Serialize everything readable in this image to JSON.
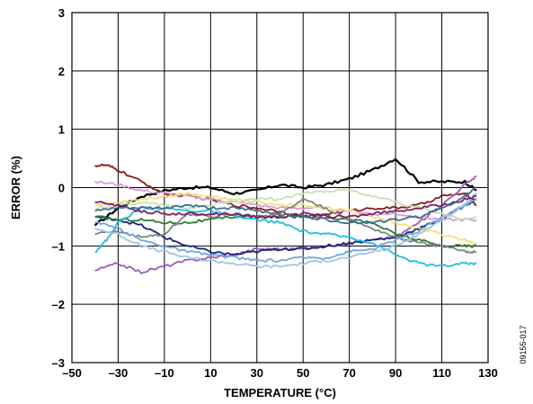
{
  "chart_data": {
    "type": "line",
    "xlabel": "TEMPERATURE (°C)",
    "ylabel": "ERROR (%)",
    "xlim": [
      -50,
      130
    ],
    "ylim": [
      -3,
      3
    ],
    "x_ticks": [
      -50,
      -30,
      -10,
      10,
      30,
      50,
      70,
      90,
      110,
      130
    ],
    "x_tick_labels": [
      "–50",
      "–30",
      "–10",
      "10",
      "30",
      "50",
      "70",
      "90",
      "110",
      "130"
    ],
    "y_ticks": [
      -3,
      -2,
      -1,
      0,
      1,
      2,
      3
    ],
    "y_tick_labels": [
      "–3",
      "–2",
      "–1",
      "0",
      "1",
      "2",
      "3"
    ],
    "grid": true,
    "legend": "none",
    "figure_id": "09155-017",
    "series": [
      {
        "color": "#000000",
        "x": [
          -40,
          -30,
          -20,
          -10,
          0,
          10,
          20,
          30,
          40,
          50,
          60,
          70,
          80,
          90,
          100,
          110,
          120,
          125
        ],
        "values": [
          -0.65,
          -0.35,
          -0.15,
          -0.05,
          0.0,
          0.0,
          -0.1,
          -0.05,
          0.05,
          0.0,
          0.05,
          0.15,
          0.3,
          0.5,
          0.1,
          0.1,
          0.1,
          -0.05
        ]
      },
      {
        "color": "#8B1A1A",
        "x": [
          -40,
          -35,
          -30,
          -20,
          -10,
          0,
          10,
          20,
          30,
          40,
          50,
          60,
          70,
          80,
          90,
          100,
          110,
          120,
          125
        ],
        "values": [
          0.38,
          0.38,
          0.3,
          0.1,
          -0.1,
          -0.15,
          -0.2,
          -0.3,
          -0.35,
          -0.4,
          -0.5,
          -0.45,
          -0.4,
          -0.35,
          -0.35,
          -0.3,
          -0.15,
          -0.1,
          -0.3
        ]
      },
      {
        "color": "#9B59B6",
        "x": [
          -40,
          -30,
          -20,
          -10,
          0,
          10,
          20,
          30,
          40,
          50,
          60,
          70,
          80,
          90,
          100,
          110,
          120,
          125
        ],
        "values": [
          -1.42,
          -1.3,
          -1.45,
          -1.35,
          -1.25,
          -1.2,
          -1.15,
          -1.05,
          -1.05,
          -1.05,
          -1.0,
          -0.95,
          -0.9,
          -0.85,
          -0.6,
          -0.3,
          0.05,
          0.2
        ]
      },
      {
        "color": "#1A237E",
        "x": [
          -40,
          -30,
          -20,
          -10,
          0,
          10,
          20,
          30,
          40,
          50,
          60,
          70,
          80,
          90,
          100,
          110,
          120,
          125
        ],
        "values": [
          -0.5,
          -0.55,
          -0.65,
          -0.85,
          -1.0,
          -1.1,
          -1.15,
          -1.1,
          -1.05,
          -1.05,
          -1.0,
          -0.95,
          -0.9,
          -0.85,
          -0.7,
          -0.55,
          -0.3,
          -0.2
        ]
      },
      {
        "color": "#2E7D32",
        "x": [
          -40,
          -30,
          -20,
          -10,
          0,
          10,
          20,
          30,
          40,
          50,
          60,
          70,
          80,
          90,
          100,
          110,
          120,
          125
        ],
        "values": [
          -0.5,
          -0.55,
          -0.55,
          -0.6,
          -0.6,
          -0.55,
          -0.5,
          -0.5,
          -0.5,
          -0.5,
          -0.5,
          -0.55,
          -0.6,
          -0.8,
          -0.9,
          -1.0,
          -1.0,
          -1.0
        ]
      },
      {
        "color": "#1FBFE0",
        "x": [
          -40,
          -35,
          -30,
          -20,
          -10,
          0,
          10,
          20,
          30,
          40,
          50,
          60,
          70,
          80,
          90,
          100,
          110,
          120,
          125
        ],
        "values": [
          -1.1,
          -0.9,
          -0.6,
          -0.35,
          -0.35,
          -0.4,
          -0.4,
          -0.5,
          -0.55,
          -0.6,
          -0.75,
          -0.8,
          -0.85,
          -0.95,
          -1.15,
          -1.3,
          -1.35,
          -1.3,
          -1.3
        ]
      },
      {
        "color": "#D99AD9",
        "x": [
          -40,
          -30,
          -20,
          -10,
          0,
          10,
          20,
          30,
          40,
          50,
          60,
          70,
          80,
          90,
          100,
          110,
          120,
          125
        ],
        "values": [
          0.1,
          0.05,
          -0.05,
          -0.1,
          -0.15,
          -0.2,
          -0.25,
          -0.3,
          -0.35,
          -0.35,
          -0.35,
          -0.4,
          -0.45,
          -0.45,
          -0.5,
          -0.55,
          -0.55,
          -0.55
        ]
      },
      {
        "color": "#F2E07A",
        "x": [
          -40,
          -30,
          -20,
          -10,
          0,
          10,
          20,
          30,
          40,
          50,
          60,
          70,
          80,
          90,
          100,
          110,
          120,
          125
        ],
        "values": [
          -0.3,
          -0.25,
          -0.2,
          -0.15,
          -0.1,
          -0.15,
          -0.2,
          -0.25,
          -0.3,
          -0.3,
          -0.35,
          -0.4,
          -0.5,
          -0.6,
          -0.7,
          -0.8,
          -0.9,
          -0.95
        ]
      },
      {
        "color": "#808080",
        "x": [
          -40,
          -30,
          -20,
          -10,
          0,
          10,
          20,
          30,
          40,
          50,
          60,
          70,
          80,
          90,
          100,
          110,
          120,
          125
        ],
        "values": [
          -0.8,
          -0.75,
          -0.85,
          -0.8,
          -0.45,
          -0.5,
          -0.45,
          -0.5,
          -0.45,
          -0.2,
          -0.35,
          -0.55,
          -0.7,
          -0.85,
          -0.95,
          -1.0,
          -1.1,
          -1.1
        ]
      },
      {
        "color": "#6FA8DC",
        "x": [
          -40,
          -30,
          -20,
          -10,
          0,
          10,
          20,
          30,
          40,
          50,
          60,
          70,
          80,
          90,
          100,
          110,
          120,
          125
        ],
        "values": [
          -0.6,
          -0.7,
          -0.9,
          -1.0,
          -1.1,
          -1.15,
          -1.2,
          -1.25,
          -1.25,
          -1.2,
          -1.2,
          -1.1,
          -1.05,
          -0.9,
          -0.75,
          -0.5,
          -0.3,
          -0.2
        ]
      },
      {
        "color": "#C8E0B4",
        "x": [
          -40,
          -30,
          -20,
          -10,
          0,
          10,
          20,
          30,
          40,
          50,
          60,
          70,
          80,
          90,
          100,
          110,
          120,
          125
        ],
        "values": [
          -0.35,
          -0.3,
          -0.25,
          -0.3,
          -0.35,
          -0.3,
          -0.25,
          -0.2,
          -0.2,
          -0.1,
          -0.05,
          -0.05,
          -0.15,
          -0.25,
          -0.35,
          -0.45,
          -0.55,
          -0.5
        ]
      },
      {
        "color": "#A0C4E8",
        "x": [
          -40,
          -30,
          -20,
          -10,
          0,
          10,
          20,
          30,
          40,
          50,
          60,
          70,
          80,
          90,
          100,
          110,
          120,
          125
        ],
        "values": [
          -0.7,
          -0.8,
          -1.0,
          -1.1,
          -1.2,
          -1.25,
          -1.3,
          -1.35,
          -1.35,
          -1.3,
          -1.25,
          -1.2,
          -1.1,
          -1.0,
          -0.8,
          -0.55,
          -0.3,
          -0.1
        ]
      },
      {
        "color": "#7B1F6B",
        "x": [
          -40,
          -30,
          -20,
          -10,
          0,
          10,
          20,
          30,
          40,
          50,
          60,
          70,
          80,
          90,
          100,
          110,
          120,
          125
        ],
        "values": [
          -0.25,
          -0.3,
          -0.4,
          -0.45,
          -0.45,
          -0.45,
          -0.45,
          -0.5,
          -0.5,
          -0.45,
          -0.5,
          -0.5,
          -0.45,
          -0.4,
          -0.35,
          -0.3,
          -0.2,
          -0.15
        ]
      },
      {
        "color": "#3C6E91",
        "x": [
          -40,
          -30,
          -20,
          -10,
          0,
          10,
          20,
          30,
          40,
          50,
          60,
          70,
          80,
          90,
          100,
          110,
          120,
          125
        ],
        "values": [
          -0.4,
          -0.35,
          -0.35,
          -0.35,
          -0.3,
          -0.35,
          -0.35,
          -0.4,
          -0.45,
          -0.5,
          -0.55,
          -0.6,
          -0.6,
          -0.55,
          -0.5,
          -0.35,
          -0.15,
          0.0
        ]
      }
    ]
  }
}
